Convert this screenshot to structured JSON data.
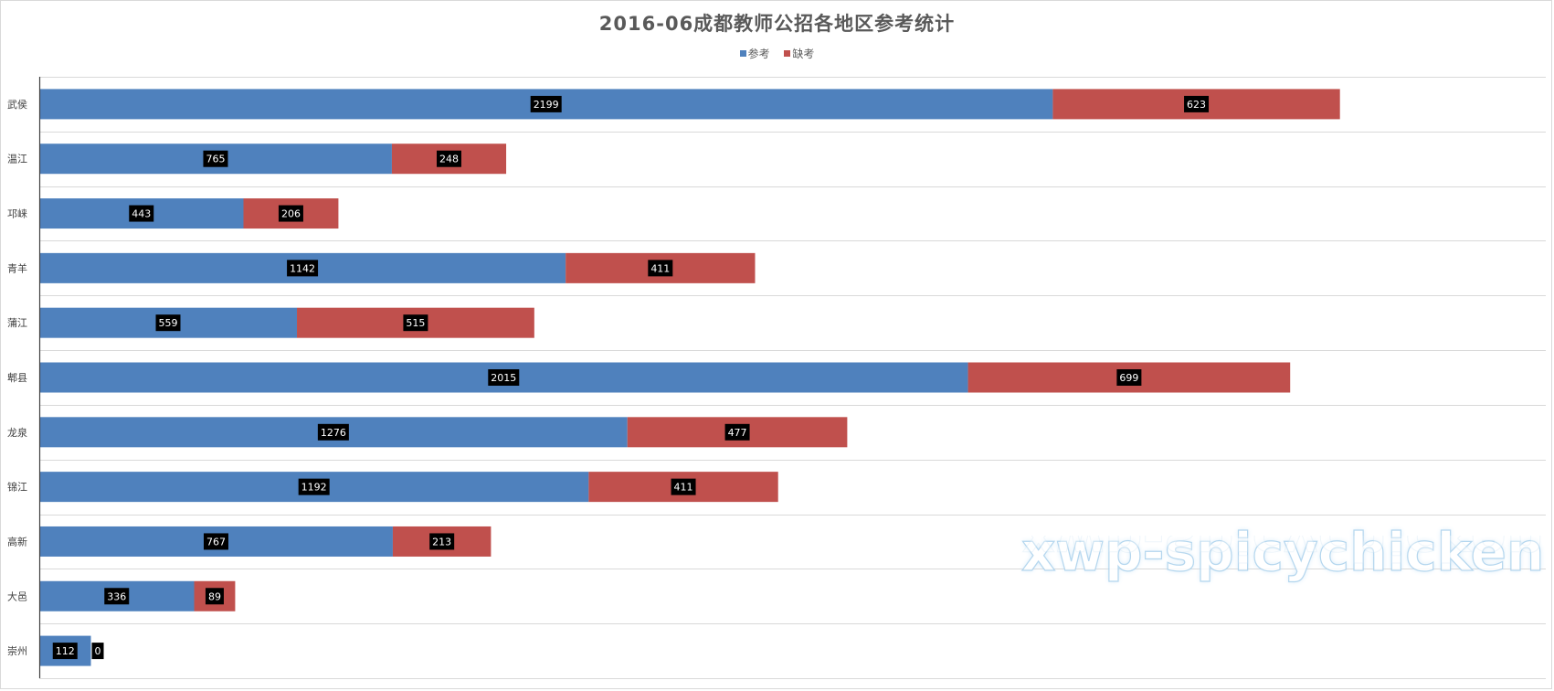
{
  "chart_data": {
    "type": "bar",
    "orientation": "horizontal",
    "stacked": true,
    "title": "2016-06成都教师公招各地区参考统计",
    "categories": [
      "武侯",
      "温江",
      "邛崃",
      "青羊",
      "蒲江",
      "郫县",
      "龙泉",
      "锦江",
      "高新",
      "大邑",
      "崇州"
    ],
    "series": [
      {
        "name": "参考",
        "color": "#4f81bd",
        "values": [
          2199,
          765,
          443,
          1142,
          559,
          2015,
          1276,
          1192,
          767,
          336,
          112
        ]
      },
      {
        "name": "缺考",
        "color": "#c0504d",
        "values": [
          623,
          248,
          206,
          411,
          515,
          699,
          477,
          411,
          213,
          89,
          0
        ]
      }
    ],
    "xlim": [
      0,
      3000
    ],
    "legend_position": "top",
    "grid": true,
    "data_labels": true
  },
  "watermark": "xwp-spicychicken"
}
